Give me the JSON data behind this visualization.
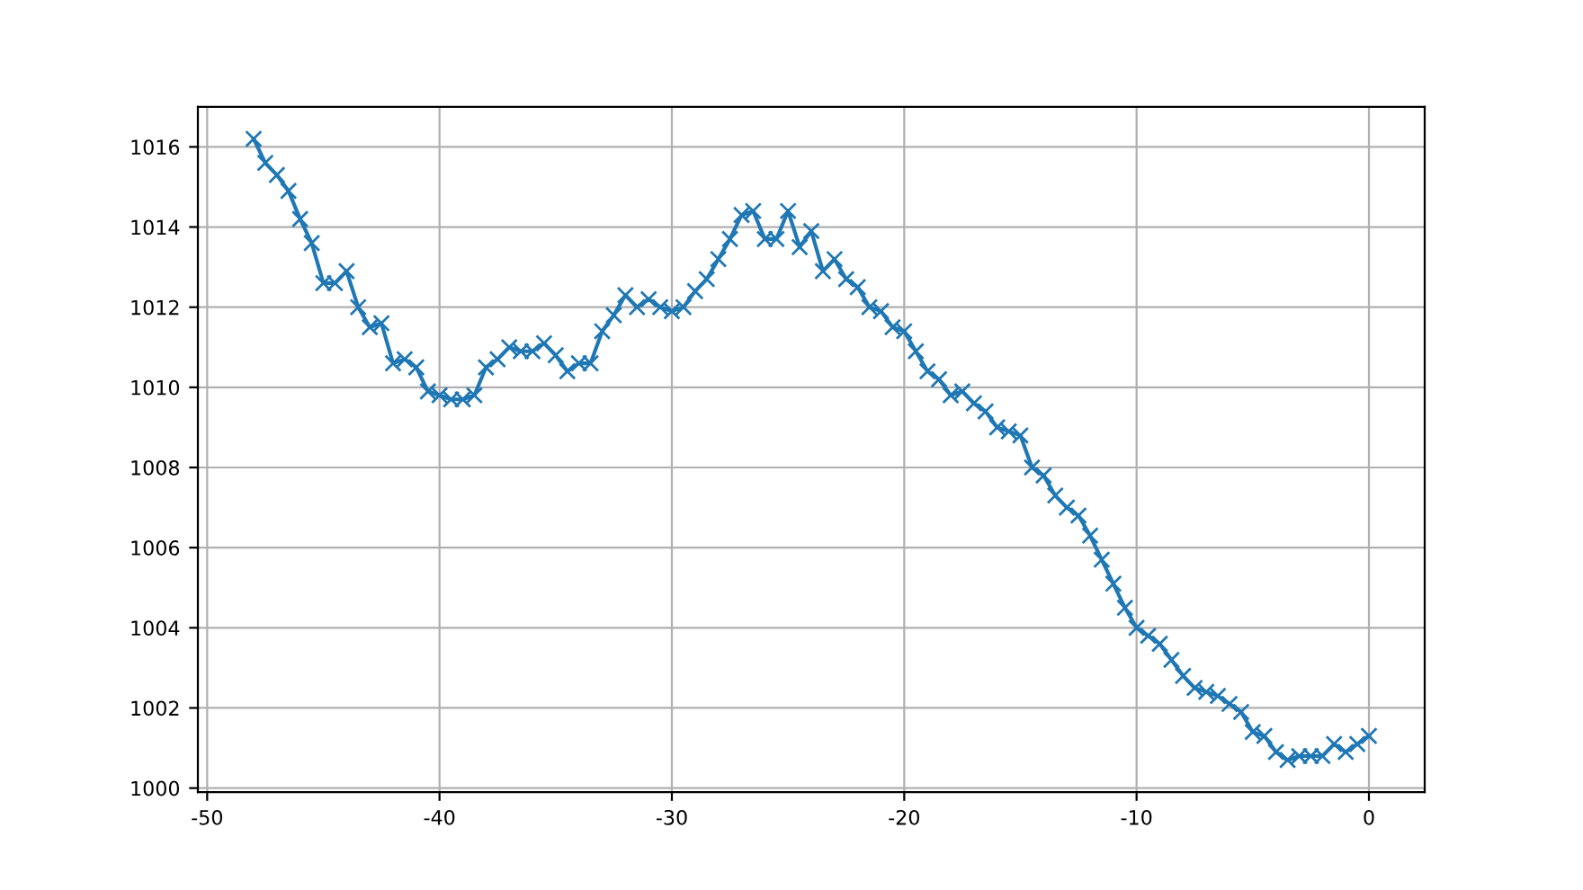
{
  "chart_data": {
    "type": "line",
    "x": [
      -48,
      -47.5,
      -47,
      -46.5,
      -46,
      -45.5,
      -45,
      -44.5,
      -44,
      -43.5,
      -43,
      -42.5,
      -42,
      -41.5,
      -41,
      -40.5,
      -40,
      -39.5,
      -39,
      -38.5,
      -38,
      -37.5,
      -37,
      -36.5,
      -36,
      -35.5,
      -35,
      -34.5,
      -34,
      -33.5,
      -33,
      -32.5,
      -32,
      -31.5,
      -31,
      -30.5,
      -30,
      -29.5,
      -29,
      -28.5,
      -28,
      -27.5,
      -27,
      -26.5,
      -26,
      -25.5,
      -25,
      -24.5,
      -24,
      -23.5,
      -23,
      -22.5,
      -22,
      -21.5,
      -21,
      -20.5,
      -20,
      -19.5,
      -19,
      -18.5,
      -18,
      -17.5,
      -17,
      -16.5,
      -16,
      -15.5,
      -15,
      -14.5,
      -14,
      -13.5,
      -13,
      -12.5,
      -12,
      -11.5,
      -11,
      -10.5,
      -10,
      -9.5,
      -9,
      -8.5,
      -8,
      -7.5,
      -7,
      -6.5,
      -6,
      -5.5,
      -5,
      -4.5,
      -4,
      -3.5,
      -3,
      -2.5,
      -2,
      -1.5,
      -1,
      -0.5,
      0
    ],
    "series": [
      {
        "color": "#1f77b4",
        "values": [
          1016.2,
          1015.6,
          1015.3,
          1014.9,
          1014.2,
          1013.6,
          1012.6,
          1012.6,
          1012.9,
          1012.0,
          1011.5,
          1011.6,
          1010.6,
          1010.7,
          1010.5,
          1009.9,
          1009.8,
          1009.7,
          1009.7,
          1009.8,
          1010.5,
          1010.7,
          1011.0,
          1010.9,
          1010.9,
          1011.1,
          1010.8,
          1010.4,
          1010.6,
          1010.6,
          1011.4,
          1011.8,
          1012.3,
          1012.0,
          1012.2,
          1012.0,
          1011.9,
          1012.0,
          1012.4,
          1012.7,
          1013.2,
          1013.7,
          1014.3,
          1014.4,
          1013.7,
          1013.7,
          1014.4,
          1013.5,
          1013.9,
          1012.9,
          1013.2,
          1012.7,
          1012.5,
          1012.0,
          1011.9,
          1011.5,
          1011.4,
          1010.9,
          1010.4,
          1010.2,
          1009.8,
          1009.9,
          1009.6,
          1009.4,
          1009.0,
          1008.9,
          1008.8,
          1008.0,
          1007.8,
          1007.3,
          1007.0,
          1006.8,
          1006.3,
          1005.7,
          1005.1,
          1004.5,
          1004.0,
          1003.8,
          1003.6,
          1003.2,
          1002.8,
          1002.5,
          1002.4,
          1002.3,
          1002.1,
          1001.9,
          1001.4,
          1001.3,
          1000.9,
          1000.7,
          1000.8,
          1000.8,
          1000.8,
          1001.1,
          1000.9,
          1001.1,
          1001.3
        ]
      }
    ],
    "xlim": [
      -50.4,
      2.4
    ],
    "ylim": [
      999.9,
      1017.0
    ],
    "xticks": [
      -50,
      -40,
      -30,
      -20,
      -10,
      0
    ],
    "yticks": [
      1000,
      1002,
      1004,
      1006,
      1008,
      1010,
      1012,
      1014,
      1016
    ],
    "grid": true,
    "marker": "cross",
    "line_style": "solid"
  }
}
